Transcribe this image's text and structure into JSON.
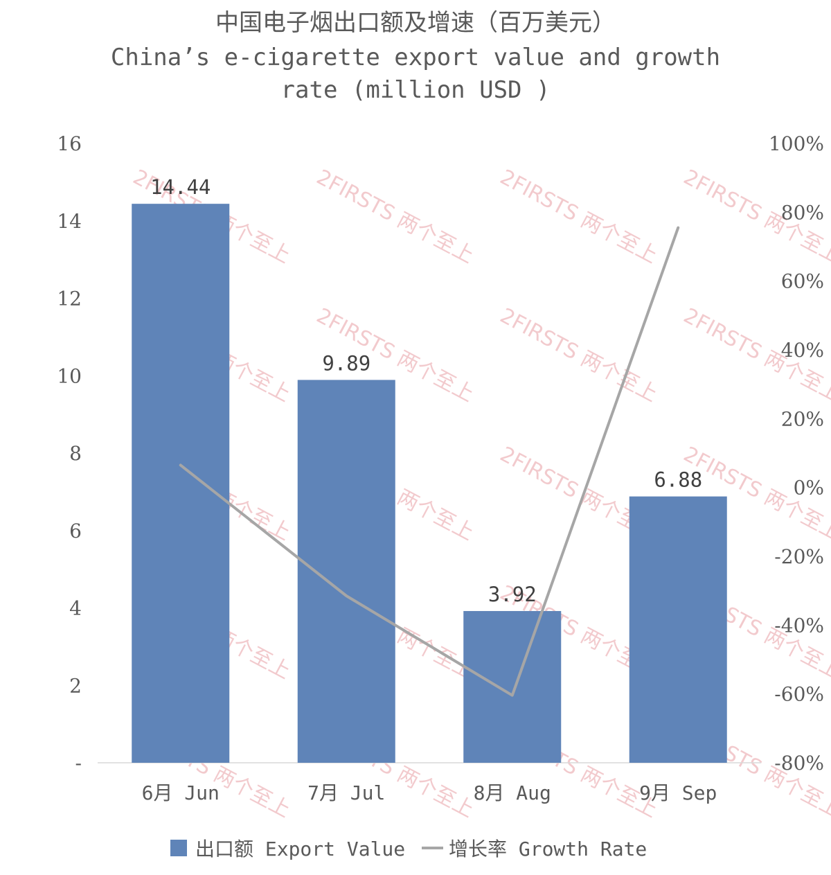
{
  "chart_data": {
    "type": "bar",
    "title_cn": "中国电子烟出口额及增速（百万美元）",
    "title_en_line1": "China’s e-cigarette export value and growth",
    "title_en_line2": "rate (million USD )",
    "categories": [
      "6月 Jun",
      "7月 Jul",
      "8月 Aug",
      "9月 Sep"
    ],
    "series": [
      {
        "name": "出口额 Export Value",
        "type": "bar",
        "axis": "left",
        "color": "#5f84b8",
        "values": [
          14.44,
          9.89,
          3.92,
          6.88
        ],
        "labels": [
          "14.44",
          "9.89",
          "3.92",
          "6.88"
        ]
      },
      {
        "name": "增长率 Growth Rate",
        "type": "line",
        "axis": "right",
        "color": "#a6a6a6",
        "values": [
          6.5,
          -31.5,
          -60.4,
          75.5
        ]
      }
    ],
    "y_left": {
      "ylim": [
        0,
        16
      ],
      "ticks": [
        0,
        2,
        4,
        6,
        8,
        10,
        12,
        14,
        16
      ],
      "tick_labels": [
        "-",
        "2",
        "4",
        "6",
        "8",
        "10",
        "12",
        "14",
        "16"
      ]
    },
    "y_right": {
      "ylim": [
        -80,
        100
      ],
      "ticks": [
        -80,
        -60,
        -40,
        -20,
        0,
        20,
        40,
        60,
        80,
        100
      ],
      "tick_labels": [
        "-80%",
        "-60%",
        "-40%",
        "-20%",
        "0%",
        "20%",
        "40%",
        "60%",
        "80%",
        "100%"
      ]
    },
    "grid": false,
    "legend_position": "bottom",
    "watermark": "2FIRSTS 两个至上"
  }
}
